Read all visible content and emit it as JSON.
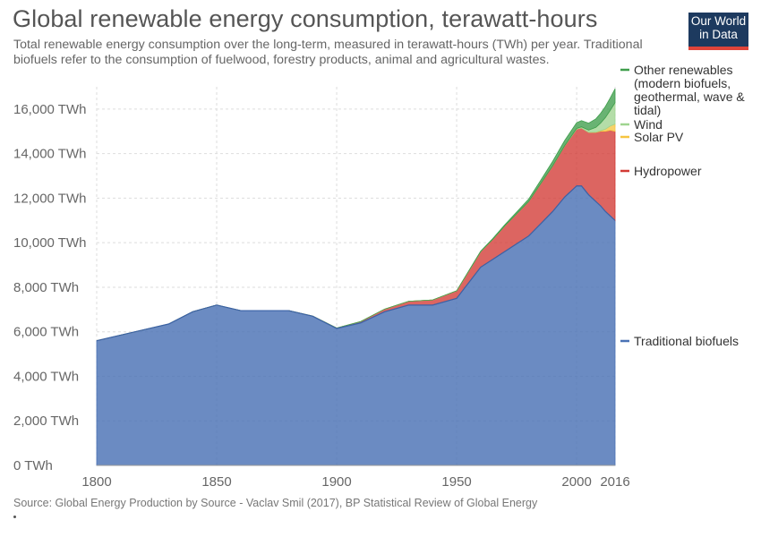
{
  "header": {
    "title": "Global renewable energy consumption, terawatt-hours",
    "subtitle": "Total renewable energy consumption over the long-term, measured in terawatt-hours (TWh) per year. Traditional biofuels refer to the consumption of fuelwood, forestry products, animal and agricultural wastes.",
    "logo_line1": "Our World",
    "logo_line2": "in Data"
  },
  "footer": {
    "source": "Source: Global Energy Production by Source - Vaclav Smil (2017), BP Statistical Review of Global Energy"
  },
  "chart_data": {
    "type": "area",
    "stacked": true,
    "title": "Global renewable energy consumption, terawatt-hours",
    "xlabel": "",
    "ylabel": "",
    "xlim": [
      1800,
      2016
    ],
    "ylim": [
      0,
      17000
    ],
    "y_ticks": [
      0,
      2000,
      4000,
      6000,
      8000,
      10000,
      12000,
      14000,
      16000
    ],
    "y_tick_labels": [
      "0 TWh",
      "2,000 TWh",
      "4,000 TWh",
      "6,000 TWh",
      "8,000 TWh",
      "10,000 TWh",
      "12,000 TWh",
      "14,000 TWh",
      "16,000 TWh"
    ],
    "x_ticks": [
      1800,
      1850,
      1900,
      1950,
      2000,
      2016
    ],
    "x_tick_labels": [
      "1800",
      "1850",
      "1900",
      "1950",
      "2000",
      "2016"
    ],
    "grid": "dashed",
    "legend_position": "right",
    "x": [
      1800,
      1810,
      1820,
      1830,
      1840,
      1850,
      1860,
      1870,
      1880,
      1890,
      1900,
      1910,
      1920,
      1930,
      1940,
      1950,
      1960,
      1965,
      1970,
      1975,
      1980,
      1985,
      1990,
      1995,
      2000,
      2002,
      2005,
      2008,
      2010,
      2012,
      2014,
      2016
    ],
    "series": [
      {
        "name": "Traditional biofuels",
        "color": "#4a72b5",
        "values": [
          5600,
          5850,
          6100,
          6350,
          6900,
          7200,
          6950,
          6950,
          6950,
          6700,
          6150,
          6400,
          6900,
          7200,
          7200,
          7500,
          8900,
          9250,
          9600,
          9950,
          10300,
          10850,
          11400,
          12050,
          12550,
          12550,
          12150,
          11850,
          11650,
          11400,
          11200,
          11000
        ]
      },
      {
        "name": "Hydropower",
        "color": "#d23a35",
        "values": [
          0,
          0,
          0,
          0,
          0,
          0,
          0,
          0,
          0,
          5,
          20,
          60,
          120,
          170,
          230,
          340,
          700,
          900,
          1150,
          1350,
          1550,
          1800,
          2050,
          2300,
          2550,
          2600,
          2800,
          3100,
          3350,
          3600,
          3850,
          4000
        ]
      },
      {
        "name": "Solar PV",
        "color": "#f6c540",
        "values": [
          0,
          0,
          0,
          0,
          0,
          0,
          0,
          0,
          0,
          0,
          0,
          0,
          0,
          0,
          0,
          0,
          0,
          0,
          0,
          0,
          0,
          0,
          0,
          0,
          1,
          1,
          4,
          12,
          32,
          100,
          190,
          330
        ]
      },
      {
        "name": "Wind",
        "color": "#9fd48f",
        "values": [
          0,
          0,
          0,
          0,
          0,
          0,
          0,
          0,
          0,
          0,
          0,
          0,
          0,
          0,
          0,
          0,
          0,
          0,
          0,
          0,
          0,
          0,
          4,
          8,
          31,
          52,
          104,
          219,
          342,
          521,
          706,
          960
        ]
      },
      {
        "name": "Other renewables (modern biofuels, geothermal, wave & tidal)",
        "color": "#3f9e4c",
        "values": [
          0,
          0,
          0,
          0,
          0,
          0,
          0,
          0,
          0,
          0,
          0,
          0,
          0,
          0,
          0,
          0,
          20,
          30,
          50,
          80,
          110,
          150,
          200,
          230,
          260,
          280,
          310,
          380,
          440,
          500,
          560,
          620
        ]
      }
    ]
  }
}
